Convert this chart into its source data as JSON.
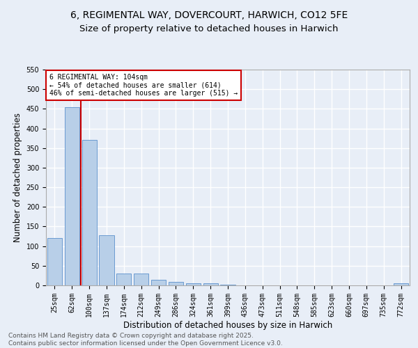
{
  "title": "6, REGIMENTAL WAY, DOVERCOURT, HARWICH, CO12 5FE",
  "subtitle": "Size of property relative to detached houses in Harwich",
  "xlabel": "Distribution of detached houses by size in Harwich",
  "ylabel": "Number of detached properties",
  "categories": [
    "25sqm",
    "62sqm",
    "100sqm",
    "137sqm",
    "174sqm",
    "212sqm",
    "249sqm",
    "286sqm",
    "324sqm",
    "361sqm",
    "399sqm",
    "436sqm",
    "473sqm",
    "511sqm",
    "548sqm",
    "585sqm",
    "623sqm",
    "660sqm",
    "697sqm",
    "735sqm",
    "772sqm"
  ],
  "values": [
    120,
    455,
    370,
    128,
    30,
    30,
    14,
    9,
    6,
    5,
    1,
    0,
    0,
    0,
    0,
    0,
    0,
    0,
    0,
    0,
    5
  ],
  "bar_color": "#b8cfe8",
  "bar_edge_color": "#5a90cc",
  "bg_color": "#e8eef7",
  "grid_color": "#ffffff",
  "vline_x_index": 1,
  "vline_color": "#cc0000",
  "annotation_text": "6 REGIMENTAL WAY: 104sqm\n← 54% of detached houses are smaller (614)\n46% of semi-detached houses are larger (515) →",
  "annotation_box_color": "#ffffff",
  "annotation_box_edge": "#cc0000",
  "footer": "Contains HM Land Registry data © Crown copyright and database right 2025.\nContains public sector information licensed under the Open Government Licence v3.0.",
  "ylim": [
    0,
    550
  ],
  "yticks": [
    0,
    50,
    100,
    150,
    200,
    250,
    300,
    350,
    400,
    450,
    500,
    550
  ],
  "title_fontsize": 10,
  "subtitle_fontsize": 9.5,
  "label_fontsize": 8.5,
  "tick_fontsize": 7,
  "footer_fontsize": 6.5
}
